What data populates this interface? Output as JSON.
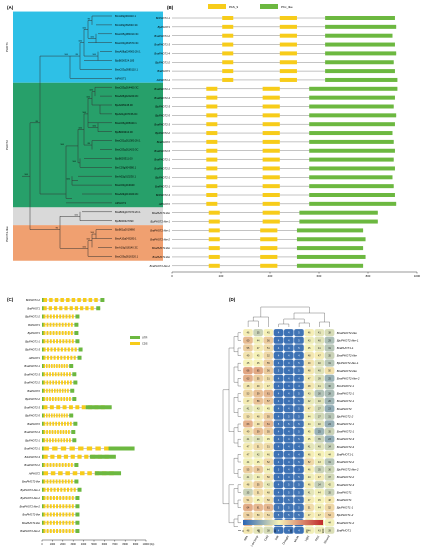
{
  "panels": {
    "a": "(A)",
    "b": "(B)",
    "c": "(C)",
    "d": "(D)"
  },
  "colors": {
    "phot1_band": "#2ec0e6",
    "phot2_band": "#27a06a",
    "phot2like_band": "#d9d9d9",
    "phot2like2_band": "#f0a070",
    "pas": "#f7cc1a",
    "pkc": "#6cb840",
    "cds": "#f7cc1a",
    "utr": "#6cb840",
    "scale_high": "#c0282a",
    "scale_mid": "#f6f2b8",
    "scale_low": "#2a64b4"
  },
  "panel_a": {
    "clade_labels": [
      "PHOT1",
      "PHOT2",
      "PHOT2-like"
    ],
    "genes": [
      "BrnA09g004310.1",
      "BrnA09g052040.3C",
      "BnaC05g080310.3C",
      "BnaC03g061570.3C",
      "BnaA08g024900.2N.1",
      "BjuB000324.185",
      "BnaC03g0585110.1",
      "AtPHOT1",
      "BnaC03g014460.3C",
      "BnaA05g024220.3C",
      "BjuA005145.00",
      "BjuA01g007156.0C",
      "BnaC06g005340.1",
      "BjuB003310.00",
      "BnaC01g011380.2N.1",
      "BnaC03g011420.3C",
      "BjuB003311.00",
      "BrnC03g004380.1",
      "BrnA02g013230.1",
      "BnaC03g013040",
      "BnaA09g013020.3C",
      "AtPHOT2",
      "BnaB03g037070.2N.1",
      "BjuB000327090",
      "BjuB01g0019860",
      "BnaA10g043280.1",
      "BrnA10g018140.3C",
      "BnaC09g0516320.1"
    ],
    "bootstrap": [
      "95",
      "100",
      "100",
      "100",
      "100",
      "85",
      "100",
      "100",
      "100",
      "100",
      "100",
      "85",
      "100",
      "100",
      "100",
      "100",
      "85",
      "100",
      "100",
      "100",
      "100",
      "100",
      "95"
    ]
  },
  "panel_b": {
    "legend": [
      {
        "label": "PAS_9",
        "color_key": "pas"
      },
      {
        "label": "PKc_like",
        "color_key": "pkc"
      }
    ],
    "genes": [
      {
        "label": "BnPHOT1-1",
        "len": 910,
        "pas": [
          [
            205,
            250
          ],
          [
            440,
            510
          ]
        ],
        "pkc": [
          [
            625,
            910
          ]
        ]
      },
      {
        "label": "BjuPHOT1",
        "len": 915,
        "pas": [
          [
            205,
            250
          ],
          [
            440,
            510
          ]
        ],
        "pkc": [
          [
            625,
            915
          ]
        ]
      },
      {
        "label": "BnaPHOT1-2",
        "len": 900,
        "pas": [
          [
            205,
            250
          ],
          [
            440,
            510
          ]
        ],
        "pkc": [
          [
            625,
            900
          ]
        ]
      },
      {
        "label": "BnaPHOT1-3",
        "len": 910,
        "pas": [
          [
            205,
            250
          ],
          [
            440,
            510
          ]
        ],
        "pkc": [
          [
            625,
            910
          ]
        ]
      },
      {
        "label": "BnaPHOT1-4",
        "len": 915,
        "pas": [
          [
            205,
            250
          ],
          [
            440,
            510
          ]
        ],
        "pkc": [
          [
            625,
            915
          ]
        ]
      },
      {
        "label": "BjuPHOT1-2",
        "len": 905,
        "pas": [
          [
            205,
            250
          ],
          [
            440,
            510
          ]
        ],
        "pkc": [
          [
            625,
            905
          ]
        ]
      },
      {
        "label": "BraPHOT1",
        "len": 910,
        "pas": [
          [
            205,
            250
          ],
          [
            440,
            510
          ]
        ],
        "pkc": [
          [
            625,
            910
          ]
        ]
      },
      {
        "label": "AtPHOT1-1",
        "len": 920,
        "pas": [
          [
            205,
            250
          ],
          [
            440,
            510
          ]
        ],
        "pkc": [
          [
            625,
            920
          ]
        ]
      },
      {
        "label": "BnaPHOT2-1",
        "len": 920,
        "pas": [
          [
            140,
            185
          ],
          [
            370,
            440
          ]
        ],
        "pkc": [
          [
            560,
            920
          ]
        ]
      },
      {
        "label": "BnaPHOT2-4",
        "len": 910,
        "pas": [
          [
            140,
            185
          ],
          [
            370,
            440
          ]
        ],
        "pkc": [
          [
            560,
            910
          ]
        ]
      },
      {
        "label": "BjuPHOT2-3",
        "len": 905,
        "pas": [
          [
            140,
            185
          ],
          [
            370,
            440
          ]
        ],
        "pkc": [
          [
            560,
            905
          ]
        ]
      },
      {
        "label": "BjuPHOT2-5",
        "len": 915,
        "pas": [
          [
            140,
            185
          ],
          [
            370,
            440
          ]
        ],
        "pkc": [
          [
            560,
            915
          ]
        ]
      },
      {
        "label": "BnaPHOT2-3",
        "len": 910,
        "pas": [
          [
            140,
            185
          ],
          [
            370,
            440
          ]
        ],
        "pkc": [
          [
            560,
            910
          ]
        ]
      },
      {
        "label": "BjuPHOT2-2",
        "len": 900,
        "pas": [
          [
            140,
            185
          ],
          [
            370,
            440
          ]
        ],
        "pkc": [
          [
            560,
            900
          ]
        ]
      },
      {
        "label": "BnaPHOT2",
        "len": 905,
        "pas": [
          [
            140,
            185
          ],
          [
            370,
            440
          ]
        ],
        "pkc": [
          [
            560,
            905
          ]
        ]
      },
      {
        "label": "BnaPHOT2-5",
        "len": 910,
        "pas": [
          [
            140,
            185
          ],
          [
            370,
            440
          ]
        ],
        "pkc": [
          [
            560,
            910
          ]
        ]
      },
      {
        "label": "BnaPHOT2-1",
        "len": 905,
        "pas": [
          [
            140,
            185
          ],
          [
            370,
            440
          ]
        ],
        "pkc": [
          [
            560,
            905
          ]
        ]
      },
      {
        "label": "BnaPHOT2-2",
        "len": 910,
        "pas": [
          [
            140,
            185
          ],
          [
            370,
            440
          ]
        ],
        "pkc": [
          [
            560,
            910
          ]
        ]
      },
      {
        "label": "BjuPHOT2-1",
        "len": 900,
        "pas": [
          [
            140,
            185
          ],
          [
            370,
            440
          ]
        ],
        "pkc": [
          [
            560,
            900
          ]
        ]
      },
      {
        "label": "BraPHOT2-1",
        "len": 905,
        "pas": [
          [
            140,
            185
          ],
          [
            370,
            440
          ]
        ],
        "pkc": [
          [
            560,
            905
          ]
        ]
      },
      {
        "label": "BnPHOT2-3",
        "len": 910,
        "pas": [
          [
            140,
            185
          ],
          [
            370,
            440
          ]
        ],
        "pkc": [
          [
            560,
            910
          ]
        ]
      },
      {
        "label": "AtPHOT2",
        "len": 915,
        "pas": [
          [
            140,
            185
          ],
          [
            370,
            440
          ]
        ],
        "pkc": [
          [
            560,
            915
          ]
        ]
      },
      {
        "label": "BnaPHOT2-like",
        "len": 840,
        "pas": [
          [
            150,
            195
          ],
          [
            370,
            440
          ]
        ],
        "pkc": [
          [
            520,
            840
          ]
        ]
      },
      {
        "label": "BjuPHOT2-like-1",
        "len": 840,
        "pas": [
          [
            150,
            195
          ],
          [
            370,
            440
          ]
        ],
        "pkc": [
          [
            520,
            840
          ]
        ]
      },
      {
        "label": "BraPHOT2-like-1",
        "len": 780,
        "pas": [
          [
            150,
            195
          ],
          [
            360,
            430
          ]
        ],
        "pkc": [
          [
            510,
            780
          ]
        ]
      },
      {
        "label": "BraPHOT2-like-2",
        "len": 790,
        "pas": [
          [
            150,
            195
          ],
          [
            360,
            430
          ]
        ],
        "pkc": [
          [
            510,
            790
          ]
        ]
      },
      {
        "label": "BnaPHOT2-like",
        "len": 780,
        "pas": [
          [
            150,
            195
          ],
          [
            360,
            430
          ]
        ],
        "pkc": [
          [
            510,
            780
          ]
        ]
      },
      {
        "label": "BraPHOT2-like",
        "len": 790,
        "pas": [
          [
            150,
            195
          ],
          [
            360,
            430
          ]
        ],
        "pkc": [
          [
            510,
            790
          ]
        ]
      },
      {
        "label": "BnaPHOT2-like-2",
        "len": 780,
        "pas": [
          [
            150,
            195
          ],
          [
            360,
            430
          ]
        ],
        "pkc": [
          [
            510,
            780
          ]
        ]
      }
    ],
    "axis_ticks": [
      "0",
      "200",
      "400",
      "600",
      "800",
      "1000"
    ]
  },
  "panel_c": {
    "legend": [
      {
        "label": "UTR",
        "color_key": "utr"
      },
      {
        "label": "CDS",
        "color_key": "cds"
      }
    ],
    "genes": [
      {
        "label": "BnPHOT1-2",
        "len": 6000
      },
      {
        "label": "BraPHOT1",
        "len": 5600
      },
      {
        "label": "BjuPHOT1-2",
        "len": 3600
      },
      {
        "label": "BnPHOT1",
        "len": 3500
      },
      {
        "label": "BjuPHOT1",
        "len": 3500
      },
      {
        "label": "BjuPHOT1-1",
        "len": 3600
      },
      {
        "label": "BjuPHOT1-3",
        "len": 3900
      },
      {
        "label": "AtPHOT1",
        "len": 3800
      },
      {
        "label": "BnaPHOT2-1",
        "len": 3000
      },
      {
        "label": "BnaPHOT2-3",
        "len": 3300
      },
      {
        "label": "BnaPHOT2-2",
        "len": 3400
      },
      {
        "label": "BraPHOT2",
        "len": 3100
      },
      {
        "label": "BjuPHOT2-2",
        "len": 3300
      },
      {
        "label": "BnaPHOT2-3",
        "len": 6700
      },
      {
        "label": "BjuPHOT2-5",
        "len": 3000
      },
      {
        "label": "BraPHOT2",
        "len": 3400
      },
      {
        "label": "BnaPHOT2-4",
        "len": 3200
      },
      {
        "label": "BjuPHOT2-1",
        "len": 3300
      },
      {
        "label": "BnaPHOT2-1",
        "len": 8900
      },
      {
        "label": "BJuPHOT2-3",
        "len": 7100
      },
      {
        "label": "BnaPHOT2-2",
        "len": 3500
      },
      {
        "label": "AtPHOT2",
        "len": 7600
      },
      {
        "label": "BnaPHOT2-like",
        "len": 3500
      },
      {
        "label": "BjuPHOT2-like-1",
        "len": 3800
      },
      {
        "label": "BjuPHOT2-like-2",
        "len": 3600
      },
      {
        "label": "BnaPHOT2-like-2",
        "len": 3600
      },
      {
        "label": "BraPHOT2-like",
        "len": 3600
      },
      {
        "label": "BnaPHOT2-like",
        "len": 3600
      },
      {
        "label": "BraPHOT2-like-2",
        "len": 3600
      }
    ],
    "axis_ticks": [
      "0",
      "1000",
      "2000",
      "3000",
      "4000",
      "5000",
      "6000",
      "7000",
      "8000",
      "9000",
      "10000"
    ],
    "axis_unit": "(bp)"
  },
  "chart_data": {
    "type": "heatmap",
    "columns": [
      "ABA",
      "Low temp",
      "Cold",
      "Salt",
      "Drought",
      "MeJA",
      "Light",
      "PEG",
      "Wound"
    ],
    "rows": [
      "BnaPHOT2-like",
      "BjuPHOT2-like-1",
      "BraPHOT1-1",
      "BnaPHOT2-like",
      "BjuPHOT2-like-1",
      "BnaPHOT2-like",
      "BnaPHOT2-like-2",
      "BJuPHOT2-1",
      "BnaPHOT2-1",
      "BnaPHOT2-1",
      "BnaPHOT2",
      "BjuPHOT2-2",
      "BnaPHOT2-1",
      "BnaPHOT2-1",
      "BnaPHOT2-3",
      "BnaPHOT2-4",
      "BraPHOT1-1",
      "BnaPHOT2-2",
      "BjuPHOT2-like-2",
      "BnaPHOT2-2",
      "BnaPHOT2-3",
      "BnaPHOT1",
      "BnaPHOT1",
      "BjuPHOT1-1",
      "BjuPHOT1-2",
      "BnaPHOT1-2",
      "BraPHOT1"
    ],
    "values": [
      [
        46,
        35,
        45,
        4,
        4,
        5,
        46,
        41,
        38
      ],
      [
        60,
        44,
        56,
        4,
        4,
        5,
        43,
        40,
        29
      ],
      [
        55,
        47,
        51,
        4,
        4,
        5,
        45,
        41,
        31
      ],
      [
        49,
        45,
        52,
        4,
        4,
        4,
        48,
        47,
        35
      ],
      [
        45,
        45,
        55,
        4,
        4,
        5,
        49,
        40,
        31
      ],
      [
        66,
        65,
        56,
        5,
        4,
        5,
        48,
        40,
        50
      ],
      [
        63,
        55,
        51,
        4,
        4,
        4,
        47,
        39,
        25
      ],
      [
        48,
        49,
        47,
        4,
        3,
        4,
        48,
        41,
        30
      ],
      [
        53,
        59,
        61,
        4,
        4,
        5,
        43,
        30,
        28
      ],
      [
        47,
        58,
        57,
        4,
        4,
        5,
        42,
        40,
        26
      ],
      [
        41,
        43,
        45,
        4,
        4,
        5,
        47,
        37,
        23
      ],
      [
        50,
        48,
        55,
        4,
        5,
        5,
        44,
        37,
        31
      ],
      [
        63,
        49,
        61,
        5,
        5,
        5,
        44,
        40,
        24
      ],
      [
        49,
        59,
        55,
        4,
        4,
        5,
        45,
        25,
        35
      ],
      [
        41,
        40,
        45,
        4,
        4,
        5,
        45,
        35,
        23
      ],
      [
        47,
        51,
        51,
        4,
        4,
        4,
        41,
        40,
        34
      ],
      [
        47,
        42,
        46,
        4,
        4,
        4,
        46,
        45,
        44
      ],
      [
        44,
        45,
        52,
        4,
        4,
        5,
        52,
        43,
        31
      ],
      [
        55,
        56,
        44,
        3,
        4,
        3,
        46,
        35,
        36
      ],
      [
        41,
        44,
        50,
        4,
        4,
        5,
        44,
        47,
        37
      ],
      [
        48,
        55,
        42,
        4,
        5,
        5,
        46,
        34,
        42
      ],
      [
        35,
        51,
        48,
        4,
        5,
        5,
        41,
        44,
        35
      ],
      [
        51,
        45,
        50,
        4,
        5,
        5,
        47,
        45,
        48
      ],
      [
        64,
        61,
        61,
        5,
        5,
        5,
        51,
        44,
        52
      ],
      [
        54,
        50,
        51,
        5,
        5,
        5,
        47,
        47,
        54
      ],
      [
        62,
        51,
        49,
        4,
        4,
        4,
        50,
        44,
        44
      ],
      [
        48,
        41,
        38,
        4,
        4,
        4,
        44,
        43,
        39
      ]
    ],
    "scale_ticks": [
      "0",
      "20",
      "40",
      "60",
      "80",
      "100"
    ],
    "scale_range": [
      0,
      100
    ]
  }
}
